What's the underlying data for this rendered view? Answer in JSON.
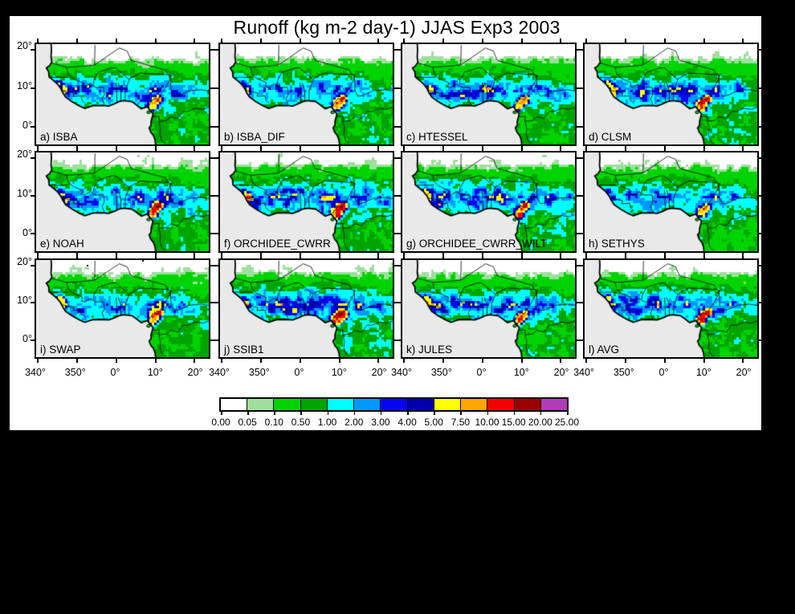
{
  "title": "Runoff (kg m-2 day-1) JJAS Exp3 2003",
  "axes": {
    "x_ticks": [
      "340°",
      "350°",
      "0°",
      "10°",
      "20°"
    ],
    "y_ticks": [
      "20°",
      "10°",
      "0°"
    ]
  },
  "panels": [
    {
      "id": "a",
      "label": "a) ISBA",
      "model": "ISBA",
      "render": {
        "seed": 11,
        "wet": 1.0,
        "hot": 0.9,
        "hotW": 0.8,
        "north": 0.9
      }
    },
    {
      "id": "b",
      "label": "b) ISBA_DIF",
      "model": "ISBA_DIF",
      "render": {
        "seed": 23,
        "wet": 0.95,
        "hot": 0.85,
        "hotW": 0.7,
        "north": 0.95
      }
    },
    {
      "id": "c",
      "label": "c) HTESSEL",
      "model": "HTESSEL",
      "render": {
        "seed": 37,
        "wet": 1.0,
        "hot": 0.9,
        "hotW": 0.6,
        "north": 1.0
      }
    },
    {
      "id": "d",
      "label": "d) CLSM",
      "model": "CLSM",
      "render": {
        "seed": 41,
        "wet": 1.1,
        "hot": 1.1,
        "hotW": 0.7,
        "north": 0.9
      }
    },
    {
      "id": "e",
      "label": "e) NOAH",
      "model": "NOAH",
      "render": {
        "seed": 53,
        "wet": 1.05,
        "hot": 1.2,
        "hotW": 0.9,
        "north": 1.2
      }
    },
    {
      "id": "f",
      "label": "f) ORCHIDEE_CWRR",
      "model": "ORCHIDEE_CWRR",
      "render": {
        "seed": 67,
        "wet": 1.2,
        "hot": 1.4,
        "hotW": 0.8,
        "north": 1.3
      }
    },
    {
      "id": "g",
      "label": "g) ORCHIDEE_CWRR_WILT",
      "model": "ORCHIDEE_CWRR_WILT",
      "render": {
        "seed": 71,
        "wet": 1.15,
        "hot": 1.3,
        "hotW": 0.8,
        "north": 1.3
      }
    },
    {
      "id": "h",
      "label": "h) SETHYS",
      "model": "SETHYS",
      "render": {
        "seed": 83,
        "wet": 0.9,
        "hot": 0.9,
        "hotW": 0.6,
        "north": 1.1
      }
    },
    {
      "id": "i",
      "label": "i) SWAP",
      "model": "SWAP",
      "render": {
        "seed": 97,
        "wet": 1.0,
        "hot": 0.9,
        "hotW": 0.7,
        "north": 1.0,
        "speckle": true
      }
    },
    {
      "id": "j",
      "label": "j) SSIB1",
      "model": "SSIB1",
      "render": {
        "seed": 101,
        "wet": 1.25,
        "hot": 1.5,
        "hotW": 0.9,
        "north": 1.1
      }
    },
    {
      "id": "k",
      "label": "k) JULES",
      "model": "JULES",
      "render": {
        "seed": 113,
        "wet": 1.0,
        "hot": 1.0,
        "hotW": 0.6,
        "north": 1.0
      }
    },
    {
      "id": "l",
      "label": "l) AVG",
      "model": "AVG",
      "render": {
        "seed": 127,
        "wet": 1.05,
        "hot": 1.0,
        "hotW": 0.7,
        "north": 1.05
      }
    }
  ],
  "colorbar": {
    "labels": [
      "0.00",
      "0.05",
      "0.10",
      "0.50",
      "1.00",
      "2.00",
      "3.00",
      "4.00",
      "5.00",
      "7.50",
      "10.00",
      "15.00",
      "20.00",
      "25.00"
    ],
    "colors": [
      "#ffffff",
      "#9ce09c",
      "#00d400",
      "#00a400",
      "#00ffff",
      "#0099ff",
      "#0505f0",
      "#0000ad",
      "#ffff00",
      "#ffa500",
      "#f50000",
      "#9b0000",
      "#b23cb8"
    ]
  },
  "map": {
    "ocean": "#e9e9e9",
    "land": "#ffffff",
    "coast": "#000000"
  },
  "chart_data": {
    "type": "heatmap",
    "title": "Runoff (kg m-2 day-1) JJAS Exp3 2003",
    "variable": "Runoff",
    "units": "kg m-2 day-1",
    "season": "JJAS",
    "experiment": "Exp3",
    "year": 2003,
    "layout": "3 rows x 4 columns of West Africa maps sharing one color scale",
    "panels": [
      {
        "id": "a",
        "model": "ISBA"
      },
      {
        "id": "b",
        "model": "ISBA_DIF"
      },
      {
        "id": "c",
        "model": "HTESSEL"
      },
      {
        "id": "d",
        "model": "CLSM"
      },
      {
        "id": "e",
        "model": "NOAH"
      },
      {
        "id": "f",
        "model": "ORCHIDEE_CWRR"
      },
      {
        "id": "g",
        "model": "ORCHIDEE_CWRR_WILT"
      },
      {
        "id": "h",
        "model": "SETHYS"
      },
      {
        "id": "i",
        "model": "SWAP"
      },
      {
        "id": "j",
        "model": "SSIB1"
      },
      {
        "id": "k",
        "model": "JULES"
      },
      {
        "id": "l",
        "model": "AVG"
      }
    ],
    "x_tick_labels_deg": [
      340,
      350,
      0,
      10,
      20
    ],
    "y_tick_labels_deg": [
      20,
      10,
      0
    ],
    "color_scale": {
      "boundaries": [
        0.0,
        0.05,
        0.1,
        0.5,
        1.0,
        2.0,
        3.0,
        4.0,
        5.0,
        7.5,
        10.0,
        15.0,
        20.0,
        25.0
      ],
      "colors": [
        "#ffffff",
        "#9ce09c",
        "#00d400",
        "#00a400",
        "#00ffff",
        "#0099ff",
        "#0505f0",
        "#0000ad",
        "#ffff00",
        "#ffa500",
        "#f50000",
        "#9b0000",
        "#b23cb8"
      ],
      "legend_position": "bottom-center"
    }
  }
}
